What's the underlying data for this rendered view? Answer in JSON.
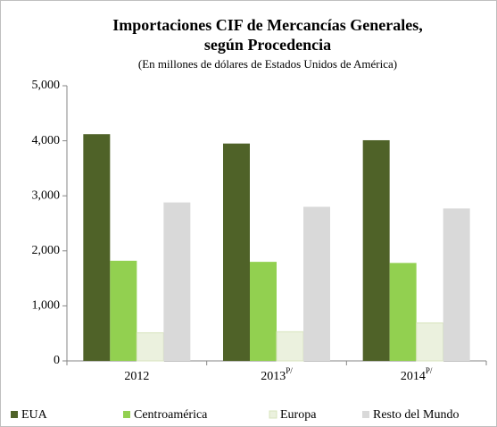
{
  "chart_data": {
    "type": "bar",
    "title": [
      "Importaciones CIF de Mercancías Generales,",
      "según Procedencia"
    ],
    "subtitle": "(En millones  de dólares  de Estados Unidos  de América)",
    "categories": [
      "2012",
      "2013P/",
      "2014P/"
    ],
    "series": [
      {
        "name": "EUA",
        "color": "#4f6228",
        "values": [
          4120,
          3950,
          4010
        ]
      },
      {
        "name": "Centroamérica",
        "color": "#92d050",
        "values": [
          1820,
          1800,
          1780
        ]
      },
      {
        "name": "Europa",
        "color": "#ebf1de",
        "values": [
          510,
          530,
          690
        ]
      },
      {
        "name": "Resto del Mundo",
        "color": "#d9d9d9",
        "values": [
          2880,
          2800,
          2770
        ]
      }
    ],
    "ylim": [
      0,
      5000
    ],
    "yticks": [
      0,
      {
        "value": 1000,
        "label": "1,000"
      },
      {
        "value": 2000,
        "label": "2,000"
      },
      {
        "value": 3000,
        "label": "3,000"
      },
      {
        "value": 4000,
        "label": "4,000"
      },
      {
        "value": 5000,
        "label": "5,000"
      }
    ],
    "grid": false,
    "legend": "bottom"
  }
}
